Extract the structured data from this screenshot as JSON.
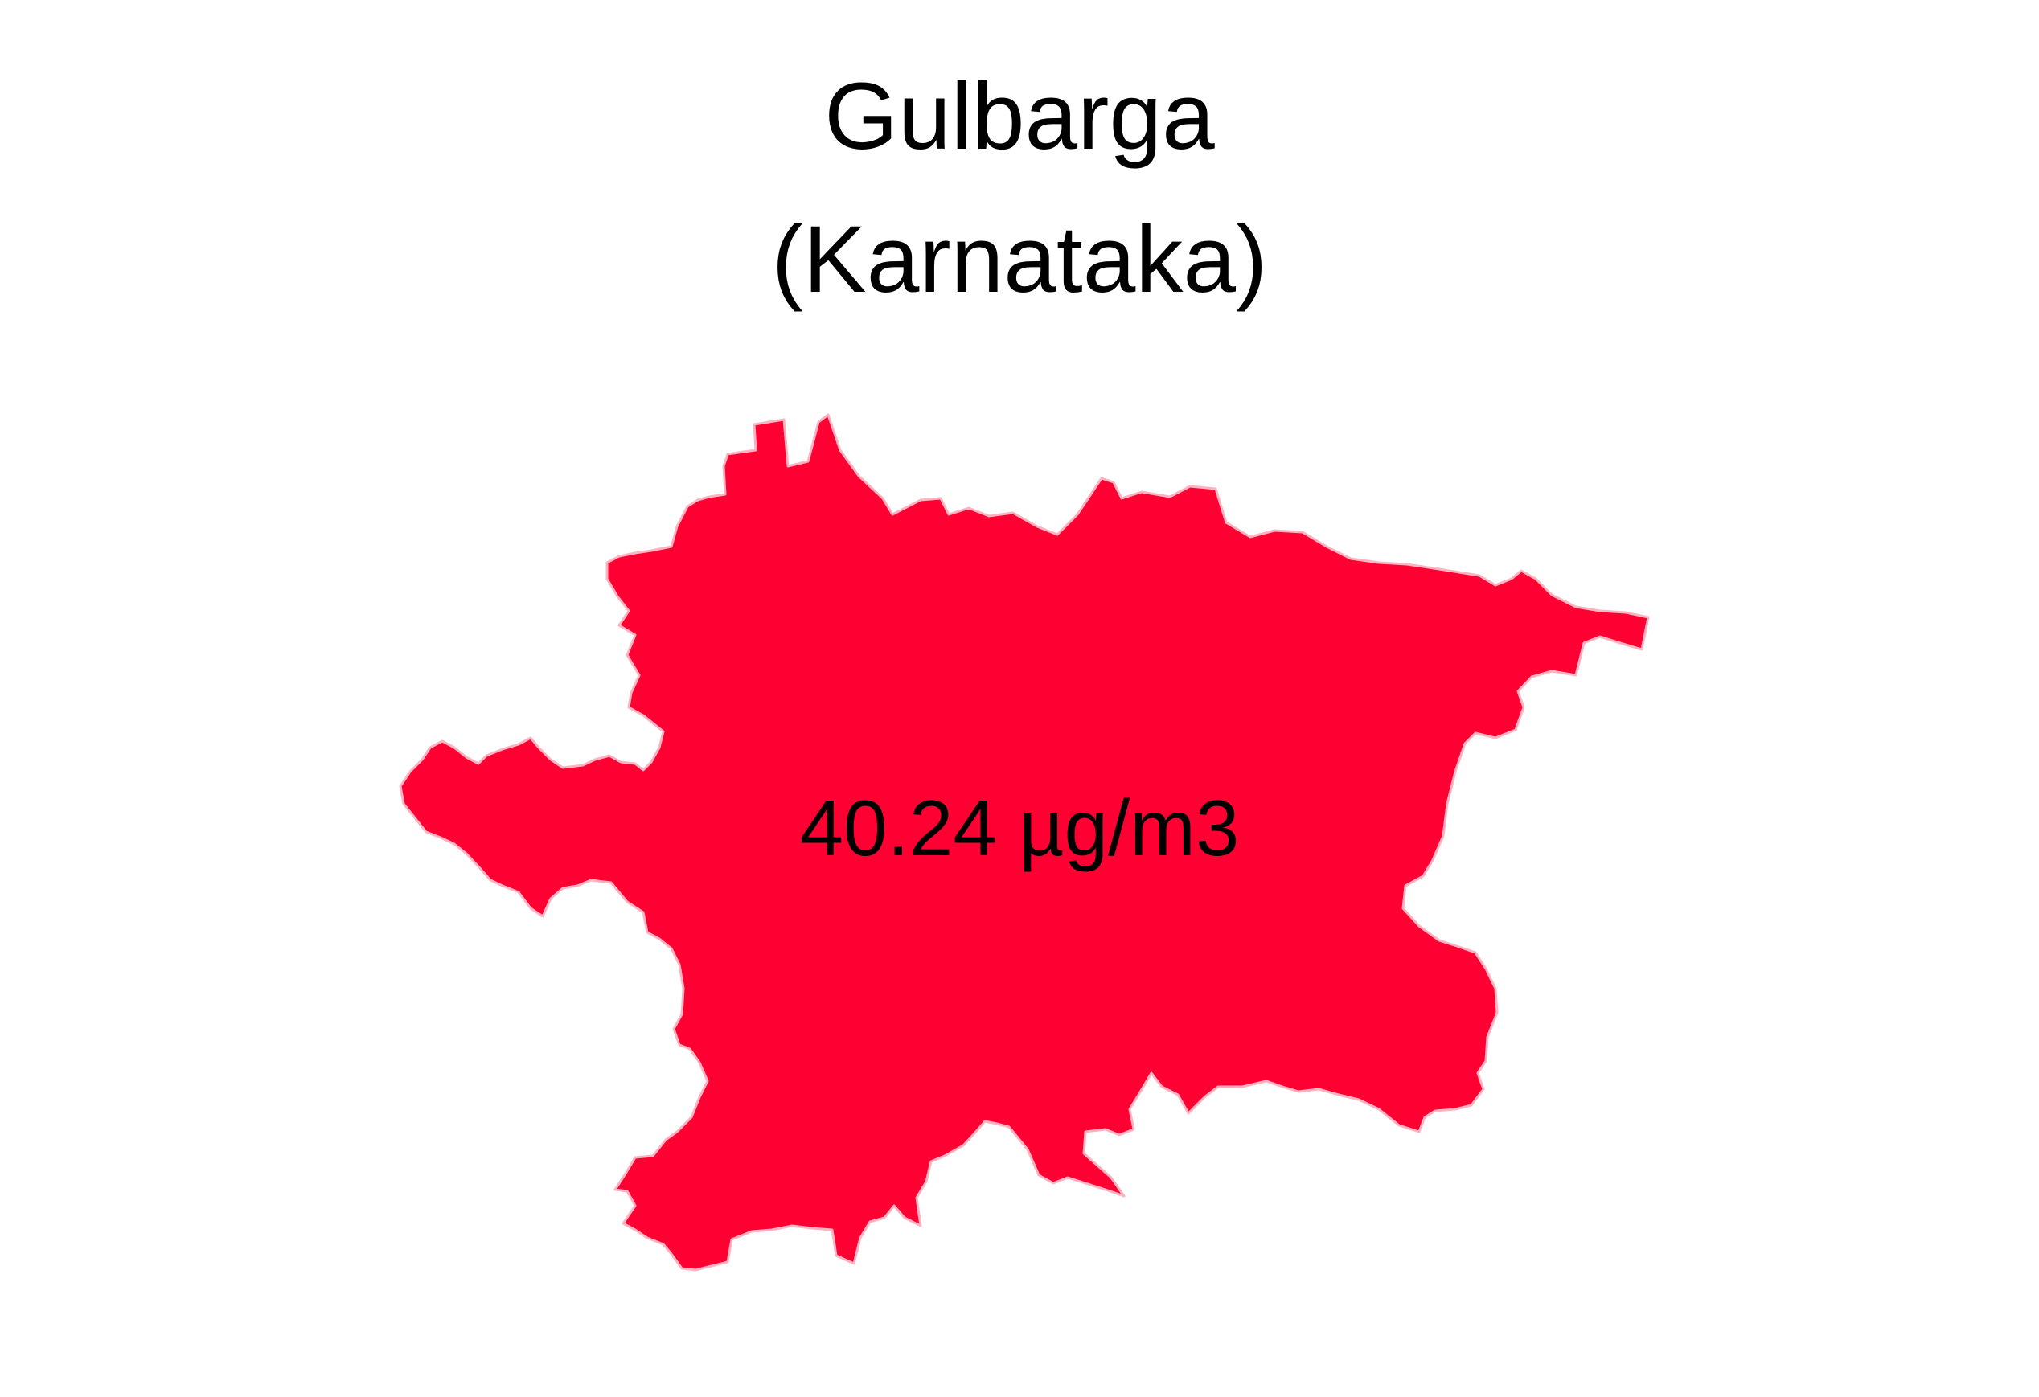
{
  "title": {
    "district": "Gulbarga",
    "state": "(Karnataka)"
  },
  "region": {
    "value_label": "40.24 µg/m3",
    "fill_color": "#ff0033",
    "outline_color": "#ffb3c1"
  }
}
